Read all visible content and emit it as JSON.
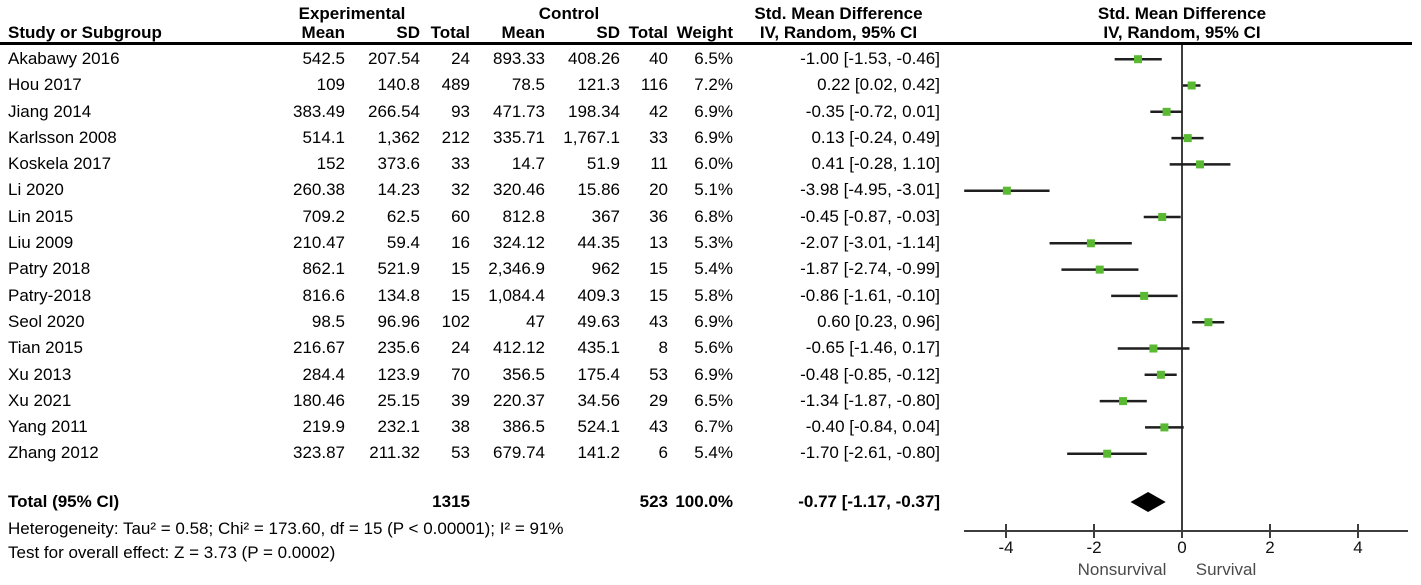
{
  "table": {
    "group_headers": {
      "experimental": "Experimental",
      "control": "Control",
      "smd_text_col": "Std. Mean Difference",
      "smd_plot_col": "Std. Mean Difference"
    },
    "columns": {
      "study": "Study or Subgroup",
      "exp_mean": "Mean",
      "exp_sd": "SD",
      "exp_total": "Total",
      "ctrl_mean": "Mean",
      "ctrl_sd": "SD",
      "ctrl_total": "Total",
      "weight": "Weight",
      "ci": "IV, Random, 95% CI",
      "ci_plot": "IV, Random, 95% CI"
    },
    "rows": [
      [
        "Akabawy 2016",
        "542.5",
        "207.54",
        "24",
        "893.33",
        "408.26",
        "40",
        "6.5%",
        "-1.00 [-1.53, -0.46]"
      ],
      [
        "Hou 2017",
        "109",
        "140.8",
        "489",
        "78.5",
        "121.3",
        "116",
        "7.2%",
        "0.22 [0.02, 0.42]"
      ],
      [
        "Jiang 2014",
        "383.49",
        "266.54",
        "93",
        "471.73",
        "198.34",
        "42",
        "6.9%",
        "-0.35 [-0.72, 0.01]"
      ],
      [
        "Karlsson 2008",
        "514.1",
        "1,362",
        "212",
        "335.71",
        "1,767.1",
        "33",
        "6.9%",
        "0.13 [-0.24, 0.49]"
      ],
      [
        "Koskela 2017",
        "152",
        "373.6",
        "33",
        "14.7",
        "51.9",
        "11",
        "6.0%",
        "0.41 [-0.28, 1.10]"
      ],
      [
        "Li 2020",
        "260.38",
        "14.23",
        "32",
        "320.46",
        "15.86",
        "20",
        "5.1%",
        "-3.98 [-4.95, -3.01]"
      ],
      [
        "Lin 2015",
        "709.2",
        "62.5",
        "60",
        "812.8",
        "367",
        "36",
        "6.8%",
        "-0.45 [-0.87, -0.03]"
      ],
      [
        "Liu 2009",
        "210.47",
        "59.4",
        "16",
        "324.12",
        "44.35",
        "13",
        "5.3%",
        "-2.07 [-3.01, -1.14]"
      ],
      [
        "Patry 2018",
        "862.1",
        "521.9",
        "15",
        "2,346.9",
        "962",
        "15",
        "5.4%",
        "-1.87 [-2.74, -0.99]"
      ],
      [
        "Patry-2018",
        "816.6",
        "134.8",
        "15",
        "1,084.4",
        "409.3",
        "15",
        "5.8%",
        "-0.86 [-1.61, -0.10]"
      ],
      [
        "Seol 2020",
        "98.5",
        "96.96",
        "102",
        "47",
        "49.63",
        "43",
        "6.9%",
        "0.60 [0.23, 0.96]"
      ],
      [
        "Tian 2015",
        "216.67",
        "235.6",
        "24",
        "412.12",
        "435.1",
        "8",
        "5.6%",
        "-0.65 [-1.46, 0.17]"
      ],
      [
        "Xu 2013",
        "284.4",
        "123.9",
        "70",
        "356.5",
        "175.4",
        "53",
        "6.9%",
        "-0.48 [-0.85, -0.12]"
      ],
      [
        "Xu 2021",
        "180.46",
        "25.15",
        "39",
        "220.37",
        "34.56",
        "29",
        "6.5%",
        "-1.34 [-1.87, -0.80]"
      ],
      [
        "Yang 2011",
        "219.9",
        "232.1",
        "38",
        "386.5",
        "524.1",
        "43",
        "6.7%",
        "-0.40 [-0.84, 0.04]"
      ],
      [
        "Zhang 2012",
        "323.87",
        "211.32",
        "53",
        "679.74",
        "141.2",
        "6",
        "5.4%",
        "-1.70 [-2.61, -0.80]"
      ]
    ],
    "total_row": {
      "label": "Total (95% CI)",
      "exp_total": "1315",
      "ctrl_total": "523",
      "weight": "100.0%",
      "ci": "-0.77 [-1.17, -0.37]"
    }
  },
  "footer": {
    "heterogeneity": "Heterogeneity: Tau² = 0.58; Chi² = 173.60, df = 15 (P < 0.00001); I² = 91%",
    "overall_effect": "Test for overall effect: Z = 3.73 (P = 0.0002)"
  },
  "chart_data": {
    "type": "scatter",
    "subtype": "forest-plot",
    "title": "Std. Mean Difference  IV, Random, 95% CI",
    "x_ticks": [
      -4,
      -2,
      0,
      2,
      4
    ],
    "xlim": [
      -5,
      5
    ],
    "xlabel_left": "Nonsurvival",
    "xlabel_right": "Survival",
    "points": [
      {
        "study": "Akabawy 2016",
        "est": -1.0,
        "lo": -1.53,
        "hi": -0.46
      },
      {
        "study": "Hou 2017",
        "est": 0.22,
        "lo": 0.02,
        "hi": 0.42
      },
      {
        "study": "Jiang 2014",
        "est": -0.35,
        "lo": -0.72,
        "hi": 0.01
      },
      {
        "study": "Karlsson 2008",
        "est": 0.13,
        "lo": -0.24,
        "hi": 0.49
      },
      {
        "study": "Koskela 2017",
        "est": 0.41,
        "lo": -0.28,
        "hi": 1.1
      },
      {
        "study": "Li 2020",
        "est": -3.98,
        "lo": -4.95,
        "hi": -3.01
      },
      {
        "study": "Lin 2015",
        "est": -0.45,
        "lo": -0.87,
        "hi": -0.03
      },
      {
        "study": "Liu 2009",
        "est": -2.07,
        "lo": -3.01,
        "hi": -1.14
      },
      {
        "study": "Patry 2018",
        "est": -1.87,
        "lo": -2.74,
        "hi": -0.99
      },
      {
        "study": "Patry-2018",
        "est": -0.86,
        "lo": -1.61,
        "hi": -0.1
      },
      {
        "study": "Seol 2020",
        "est": 0.6,
        "lo": 0.23,
        "hi": 0.96
      },
      {
        "study": "Tian 2015",
        "est": -0.65,
        "lo": -1.46,
        "hi": 0.17
      },
      {
        "study": "Xu 2013",
        "est": -0.48,
        "lo": -0.85,
        "hi": -0.12
      },
      {
        "study": "Xu 2021",
        "est": -1.34,
        "lo": -1.87,
        "hi": -0.8
      },
      {
        "study": "Yang 2011",
        "est": -0.4,
        "lo": -0.84,
        "hi": 0.04
      },
      {
        "study": "Zhang 2012",
        "est": -1.7,
        "lo": -2.61,
        "hi": -0.8
      }
    ],
    "total": {
      "label": "Total (95% CI)",
      "est": -0.77,
      "lo": -1.17,
      "hi": -0.37
    },
    "colors": {
      "marker_green": "#5ab933",
      "ci_line": "#1f1f1f",
      "axis": "#3d3d3d",
      "diamond": "#000000"
    }
  }
}
